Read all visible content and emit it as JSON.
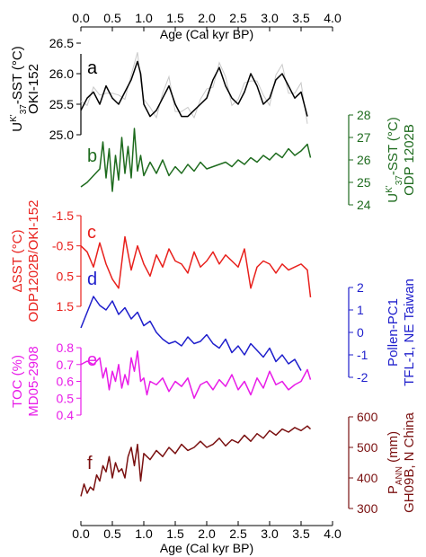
{
  "chart_data": {
    "type": "line",
    "x_axis": {
      "label": "Age (Cal kyr BP)",
      "range": [
        0,
        4.0
      ],
      "ticks": [
        "0.0",
        "0.5",
        "1.0",
        "1.5",
        "2.0",
        "2.5",
        "3.0",
        "3.5",
        "4.0"
      ]
    },
    "panels": [
      {
        "letter": "a",
        "ylabel_lines": [
          "U<k'>37-SST (°C)",
          "OKI-152"
        ],
        "ylabel_1": "U",
        "ylabel_1_sup": "K'",
        "ylabel_1_sub": "37",
        "ylabel_1_rest": "-SST (°C)",
        "ylabel_2": "OKI-152",
        "axis_side": "left",
        "color": "#000000",
        "ylim": [
          25.0,
          26.5
        ],
        "ticks": [
          "25.0",
          "25.5",
          "26.0",
          "26.5"
        ],
        "gray_series": true,
        "x": [
          0.0,
          0.1,
          0.2,
          0.3,
          0.4,
          0.5,
          0.6,
          0.7,
          0.8,
          0.9,
          0.95,
          1.0,
          1.1,
          1.2,
          1.3,
          1.4,
          1.5,
          1.6,
          1.7,
          1.8,
          1.9,
          2.0,
          2.1,
          2.2,
          2.3,
          2.4,
          2.5,
          2.6,
          2.7,
          2.8,
          2.9,
          3.0,
          3.1,
          3.2,
          3.3,
          3.4,
          3.5,
          3.6
        ],
        "y": [
          25.4,
          25.6,
          25.7,
          25.5,
          25.8,
          25.6,
          25.5,
          25.7,
          25.9,
          26.2,
          26.0,
          25.5,
          25.3,
          25.4,
          25.6,
          25.8,
          25.5,
          25.3,
          25.3,
          25.4,
          25.5,
          25.6,
          25.9,
          26.1,
          25.8,
          25.6,
          25.5,
          25.7,
          26.0,
          25.8,
          25.5,
          25.6,
          25.9,
          26.0,
          25.8,
          25.6,
          25.7,
          25.3
        ]
      },
      {
        "letter": "b",
        "ylabel_1": "U",
        "ylabel_1_sup": "K'",
        "ylabel_1_sub": "37",
        "ylabel_1_rest": "-SST (°C)",
        "ylabel_2": "ODP 1202B",
        "axis_side": "right",
        "color": "#1e6b1e",
        "ylim": [
          24,
          28
        ],
        "ticks": [
          "24",
          "25",
          "26",
          "27",
          "28"
        ],
        "x": [
          0.0,
          0.1,
          0.2,
          0.3,
          0.35,
          0.4,
          0.45,
          0.5,
          0.55,
          0.6,
          0.65,
          0.7,
          0.75,
          0.8,
          0.85,
          0.9,
          0.95,
          1.0,
          1.1,
          1.2,
          1.3,
          1.4,
          1.5,
          1.6,
          1.7,
          1.8,
          1.9,
          2.0,
          2.1,
          2.2,
          2.3,
          2.4,
          2.5,
          2.6,
          2.7,
          2.8,
          2.9,
          3.0,
          3.1,
          3.2,
          3.3,
          3.4,
          3.5,
          3.6,
          3.65
        ],
        "y": [
          24.8,
          25.0,
          25.3,
          25.6,
          26.8,
          25.2,
          26.5,
          24.6,
          26.2,
          25.1,
          27.0,
          25.4,
          26.6,
          25.2,
          27.4,
          25.5,
          26.2,
          25.3,
          25.9,
          25.4,
          26.0,
          25.3,
          25.7,
          25.4,
          25.8,
          25.5,
          25.9,
          25.6,
          25.7,
          25.8,
          25.9,
          25.7,
          26.0,
          25.8,
          26.1,
          25.9,
          26.2,
          26.0,
          26.3,
          26.1,
          26.5,
          26.2,
          26.4,
          26.7,
          26.1
        ]
      },
      {
        "letter": "c",
        "ylabel_1": "ΔSST (°C)",
        "ylabel_2": "ODP1202B/OKI-152",
        "axis_side": "left",
        "color": "#e8201c",
        "ylim": [
          -1.5,
          1.5
        ],
        "inverted": true,
        "ticks": [
          "-1.5",
          "-0.5",
          "0.5",
          "1.5"
        ],
        "tick_values": [
          -1.5,
          -0.5,
          0.5,
          1.5
        ],
        "x": [
          0.0,
          0.1,
          0.2,
          0.3,
          0.4,
          0.5,
          0.6,
          0.7,
          0.8,
          0.9,
          1.0,
          1.1,
          1.2,
          1.3,
          1.4,
          1.5,
          1.6,
          1.7,
          1.8,
          1.9,
          2.0,
          2.1,
          2.2,
          2.3,
          2.4,
          2.5,
          2.6,
          2.7,
          2.8,
          2.9,
          3.0,
          3.1,
          3.2,
          3.3,
          3.4,
          3.5,
          3.6,
          3.65
        ],
        "y": [
          -0.5,
          -0.3,
          0.2,
          -0.6,
          0.1,
          0.6,
          0.9,
          -0.8,
          0.3,
          -0.5,
          0.1,
          0.5,
          -0.2,
          0.2,
          -0.4,
          0.0,
          0.1,
          0.4,
          -0.3,
          0.2,
          0.0,
          -0.3,
          0.1,
          -0.2,
          0.0,
          0.2,
          -0.4,
          0.9,
          0.2,
          0.0,
          0.1,
          0.4,
          0.1,
          0.3,
          0.2,
          0.1,
          0.3,
          1.2
        ]
      },
      {
        "letter": "d",
        "ylabel_1": "Pollen-PC1",
        "ylabel_2": "TFL-1, NE Taiwan",
        "axis_side": "right",
        "color": "#1f1fcc",
        "ylim": [
          -2,
          2
        ],
        "ticks": [
          "-2",
          "-1",
          "0",
          "1",
          "2"
        ],
        "x": [
          0.0,
          0.1,
          0.2,
          0.3,
          0.4,
          0.5,
          0.6,
          0.7,
          0.8,
          0.9,
          1.0,
          1.1,
          1.2,
          1.3,
          1.4,
          1.5,
          1.6,
          1.7,
          1.8,
          1.9,
          2.0,
          2.1,
          2.2,
          2.3,
          2.4,
          2.5,
          2.6,
          2.7,
          2.8,
          2.9,
          3.0,
          3.1,
          3.2,
          3.3,
          3.4,
          3.5
        ],
        "y": [
          0.2,
          0.9,
          1.6,
          1.2,
          1.0,
          1.4,
          0.8,
          1.1,
          0.6,
          0.9,
          0.3,
          0.5,
          0.0,
          -0.3,
          -0.5,
          -0.4,
          -0.6,
          -0.2,
          -0.5,
          -0.4,
          -0.1,
          -0.5,
          -0.7,
          -0.3,
          -0.9,
          -0.6,
          -1.0,
          -0.5,
          -0.8,
          -1.1,
          -0.7,
          -1.3,
          -1.0,
          -1.4,
          -1.2,
          -1.7
        ]
      },
      {
        "letter": "e",
        "ylabel_1": "TOC (%)",
        "ylabel_2": "MD05-2908",
        "axis_side": "left",
        "color": "#e81ce8",
        "ylim": [
          0.4,
          0.8
        ],
        "ticks": [
          "0.4",
          "0.5",
          "0.6",
          "0.7",
          "0.8"
        ],
        "x": [
          0.0,
          0.1,
          0.2,
          0.3,
          0.35,
          0.4,
          0.45,
          0.5,
          0.55,
          0.6,
          0.65,
          0.7,
          0.75,
          0.8,
          0.85,
          0.9,
          0.95,
          1.0,
          1.05,
          1.1,
          1.2,
          1.3,
          1.4,
          1.5,
          1.6,
          1.7,
          1.8,
          1.9,
          2.0,
          2.1,
          2.2,
          2.3,
          2.4,
          2.5,
          2.6,
          2.7,
          2.8,
          2.9,
          3.0,
          3.1,
          3.2,
          3.3,
          3.4,
          3.5,
          3.6,
          3.65
        ],
        "y": [
          0.7,
          0.72,
          0.7,
          0.74,
          0.62,
          0.68,
          0.55,
          0.66,
          0.6,
          0.7,
          0.56,
          0.64,
          0.58,
          0.74,
          0.66,
          0.78,
          0.6,
          0.62,
          0.52,
          0.6,
          0.58,
          0.62,
          0.54,
          0.6,
          0.57,
          0.62,
          0.5,
          0.58,
          0.6,
          0.55,
          0.61,
          0.57,
          0.64,
          0.55,
          0.6,
          0.52,
          0.62,
          0.56,
          0.66,
          0.58,
          0.6,
          0.55,
          0.58,
          0.6,
          0.67,
          0.61
        ]
      },
      {
        "letter": "f",
        "ylabel_1": "P",
        "ylabel_1_sub": "ANN",
        "ylabel_1_rest": " (mm)",
        "ylabel_2": "GH09B, N China",
        "axis_side": "right",
        "color": "#7a1010",
        "ylim": [
          300,
          600
        ],
        "ticks": [
          "300",
          "400",
          "500",
          "600"
        ],
        "x": [
          0.0,
          0.05,
          0.1,
          0.15,
          0.2,
          0.25,
          0.3,
          0.35,
          0.4,
          0.45,
          0.5,
          0.55,
          0.6,
          0.65,
          0.7,
          0.75,
          0.8,
          0.85,
          0.9,
          0.95,
          1.0,
          1.1,
          1.2,
          1.3,
          1.4,
          1.5,
          1.6,
          1.7,
          1.8,
          1.9,
          2.0,
          2.1,
          2.2,
          2.3,
          2.4,
          2.5,
          2.6,
          2.7,
          2.8,
          2.9,
          3.0,
          3.1,
          3.2,
          3.3,
          3.4,
          3.5,
          3.6,
          3.65
        ],
        "y": [
          340,
          380,
          350,
          370,
          360,
          410,
          390,
          440,
          420,
          470,
          400,
          450,
          420,
          430,
          400,
          470,
          500,
          440,
          510,
          390,
          480,
          460,
          490,
          470,
          500,
          480,
          510,
          490,
          500,
          520,
          500,
          510,
          530,
          505,
          525,
          515,
          540,
          520,
          545,
          530,
          555,
          540,
          560,
          550,
          565,
          555,
          570,
          560
        ]
      }
    ]
  }
}
